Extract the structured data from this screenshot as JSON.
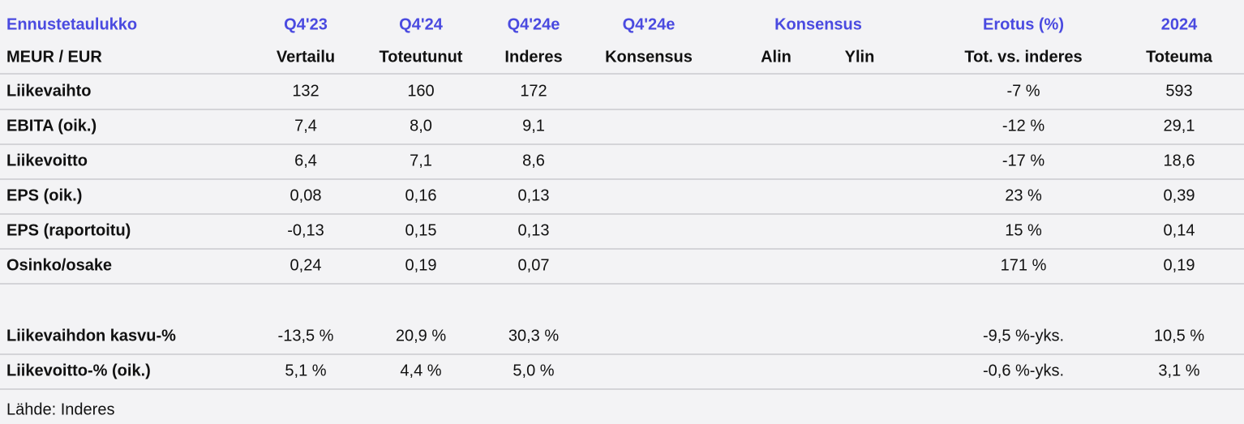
{
  "table": {
    "header_top": [
      "Ennustetaulukko",
      "Q4'23",
      "Q4'24",
      "Q4'24e",
      "Q4'24e",
      "Konsensus",
      "Erotus (%)",
      "2024"
    ],
    "header_sub": [
      "MEUR / EUR",
      "Vertailu",
      "Toteutunut",
      "Inderes",
      "Konsensus",
      "Alin",
      "Ylin",
      "Tot. vs. inderes",
      "Toteuma"
    ],
    "rows": [
      [
        "Liikevaihto",
        "132",
        "160",
        "172",
        "-7 %",
        "593"
      ],
      [
        "EBITA (oik.)",
        "7,4",
        "8,0",
        "9,1",
        "-12 %",
        "29,1"
      ],
      [
        "Liikevoitto",
        "6,4",
        "7,1",
        "8,6",
        "-17 %",
        "18,6"
      ],
      [
        "EPS (oik.)",
        "0,08",
        "0,16",
        "0,13",
        "23 %",
        "0,39"
      ],
      [
        "EPS (raportoitu)",
        "-0,13",
        "0,15",
        "0,13",
        "15 %",
        "0,14"
      ],
      [
        "Osinko/osake",
        "0,24",
        "0,19",
        "0,07",
        "171 %",
        "0,19"
      ]
    ],
    "growth_rows": [
      [
        "Liikevaihdon kasvu-%",
        "-13,5 %",
        "20,9 %",
        "30,3 %",
        "-9,5 %-yks.",
        "10,5 %"
      ],
      [
        "Liikevoitto-% (oik.)",
        "5,1 %",
        "4,4 %",
        "5,0 %",
        "-0,6 %-yks.",
        "3,1 %"
      ]
    ],
    "source": "Lähde: Inderes"
  }
}
